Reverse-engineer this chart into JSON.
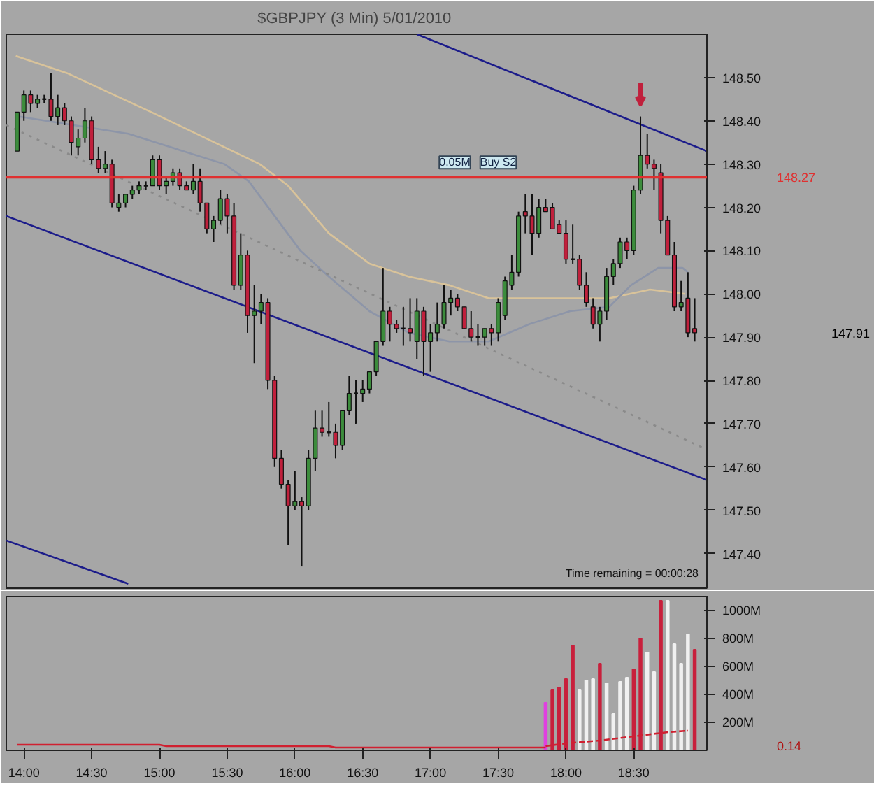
{
  "chart_data": [
    {
      "type": "candlestick",
      "title": "$GBPJPY (3 Min)  5/01/2010",
      "x": [
        13.95,
        14.0,
        14.05,
        14.1,
        14.15,
        14.2,
        14.25,
        14.3,
        14.35,
        14.4,
        14.45,
        14.5,
        14.55,
        14.6,
        14.65,
        14.7,
        14.75,
        14.8,
        14.85,
        14.9,
        14.95,
        15.0,
        15.05,
        15.1,
        15.15,
        15.2,
        15.25,
        15.3,
        15.35,
        15.4,
        15.45,
        15.5,
        15.55,
        15.6,
        15.65,
        15.7,
        15.75,
        15.8,
        15.85,
        15.9,
        15.95,
        16.0,
        16.05,
        16.1,
        16.15,
        16.2,
        16.25,
        16.3,
        16.35,
        16.4,
        16.45,
        16.5,
        16.55,
        16.6,
        16.65,
        16.7,
        16.75,
        16.8,
        16.85,
        16.9,
        16.95,
        17.0,
        17.05,
        17.1,
        17.15,
        17.2,
        17.25,
        17.3,
        17.35,
        17.4,
        17.45,
        17.5,
        17.55,
        17.6,
        17.65,
        17.7,
        17.75,
        17.8,
        17.85,
        17.9,
        17.95,
        18.0,
        18.05,
        18.1,
        18.15,
        18.2,
        18.25,
        18.3,
        18.35,
        18.4,
        18.45,
        18.5,
        18.55,
        18.6,
        18.65,
        18.7,
        18.75,
        18.8,
        18.85,
        18.9,
        18.95
      ],
      "ohlc": [
        [
          148.33,
          148.42,
          148.33,
          148.42
        ],
        [
          148.42,
          148.47,
          148.4,
          148.46
        ],
        [
          148.46,
          148.47,
          148.42,
          148.44
        ],
        [
          148.44,
          148.46,
          148.43,
          148.45
        ],
        [
          148.45,
          148.46,
          148.44,
          148.45
        ],
        [
          148.45,
          148.51,
          148.4,
          148.41
        ],
        [
          148.41,
          148.46,
          148.39,
          148.43
        ],
        [
          148.43,
          148.44,
          148.39,
          148.4
        ],
        [
          148.4,
          148.41,
          148.32,
          148.35
        ],
        [
          148.34,
          148.38,
          148.32,
          148.36
        ],
        [
          148.36,
          148.43,
          148.35,
          148.4
        ],
        [
          148.4,
          148.41,
          148.3,
          148.31
        ],
        [
          148.31,
          148.34,
          148.28,
          148.29
        ],
        [
          148.29,
          148.33,
          148.28,
          148.3
        ],
        [
          148.3,
          148.31,
          148.2,
          148.21
        ],
        [
          148.2,
          148.23,
          148.19,
          148.21
        ],
        [
          148.21,
          148.23,
          148.2,
          148.23
        ],
        [
          148.23,
          148.25,
          148.22,
          148.24
        ],
        [
          148.24,
          148.26,
          148.23,
          148.25
        ],
        [
          148.25,
          148.26,
          148.24,
          148.25
        ],
        [
          148.25,
          148.32,
          148.25,
          148.31
        ],
        [
          148.31,
          148.32,
          148.24,
          148.25
        ],
        [
          148.25,
          148.27,
          148.23,
          148.26
        ],
        [
          148.26,
          148.29,
          148.25,
          148.28
        ],
        [
          148.28,
          148.29,
          148.24,
          148.25
        ],
        [
          148.25,
          148.26,
          148.24,
          148.24
        ],
        [
          148.24,
          148.3,
          148.23,
          148.26
        ],
        [
          148.26,
          148.29,
          148.19,
          148.21
        ],
        [
          148.21,
          148.21,
          148.14,
          148.15
        ],
        [
          148.15,
          148.18,
          148.12,
          148.17
        ],
        [
          148.17,
          148.24,
          148.16,
          148.22
        ],
        [
          148.22,
          148.23,
          148.14,
          148.18
        ],
        [
          148.18,
          148.21,
          148.01,
          148.02
        ],
        [
          148.02,
          148.14,
          148.01,
          148.09
        ],
        [
          148.09,
          148.1,
          147.91,
          147.95
        ],
        [
          147.95,
          148.02,
          147.84,
          147.96
        ],
        [
          147.96,
          148.0,
          147.93,
          147.98
        ],
        [
          147.98,
          147.99,
          147.78,
          147.8
        ],
        [
          147.8,
          147.81,
          147.6,
          147.62
        ],
        [
          147.62,
          147.64,
          147.55,
          147.56
        ],
        [
          147.56,
          147.57,
          147.42,
          147.51
        ],
        [
          147.51,
          147.59,
          147.5,
          147.52
        ],
        [
          147.52,
          147.53,
          147.37,
          147.51
        ],
        [
          147.51,
          147.64,
          147.5,
          147.62
        ],
        [
          147.62,
          147.73,
          147.59,
          147.69
        ],
        [
          147.69,
          147.73,
          147.67,
          147.68
        ],
        [
          147.68,
          147.75,
          147.67,
          147.68
        ],
        [
          147.68,
          147.7,
          147.62,
          147.65
        ],
        [
          147.65,
          147.73,
          147.64,
          147.73
        ],
        [
          147.73,
          147.81,
          147.72,
          147.77
        ],
        [
          147.77,
          147.8,
          147.7,
          147.77
        ],
        [
          147.77,
          147.8,
          147.75,
          147.78
        ],
        [
          147.78,
          147.82,
          147.77,
          147.82
        ],
        [
          147.82,
          147.89,
          147.81,
          147.89
        ],
        [
          147.89,
          148.06,
          147.88,
          147.96
        ],
        [
          147.96,
          147.97,
          147.89,
          147.93
        ],
        [
          147.93,
          147.94,
          147.91,
          147.92
        ],
        [
          147.92,
          147.97,
          147.88,
          147.92
        ],
        [
          147.92,
          147.99,
          147.89,
          147.91
        ],
        [
          147.89,
          147.99,
          147.85,
          147.96
        ],
        [
          147.96,
          147.97,
          147.81,
          147.89
        ],
        [
          147.89,
          147.93,
          147.82,
          147.91
        ],
        [
          147.91,
          147.98,
          147.89,
          147.93
        ],
        [
          147.93,
          148.02,
          147.92,
          147.98
        ],
        [
          147.98,
          148.01,
          147.95,
          147.99
        ],
        [
          147.99,
          148.0,
          147.96,
          147.97
        ],
        [
          147.97,
          147.97,
          147.92,
          147.92
        ],
        [
          147.92,
          147.96,
          147.89,
          147.9
        ],
        [
          147.9,
          147.93,
          147.88,
          147.9
        ],
        [
          147.9,
          147.92,
          147.88,
          147.92
        ],
        [
          147.92,
          147.93,
          147.88,
          147.91
        ],
        [
          147.91,
          147.99,
          147.89,
          147.98
        ],
        [
          147.95,
          148.04,
          147.94,
          148.03
        ],
        [
          148.02,
          148.09,
          148.01,
          148.05
        ],
        [
          148.05,
          148.19,
          148.04,
          148.18
        ],
        [
          148.19,
          148.23,
          148.14,
          148.18
        ],
        [
          148.18,
          148.23,
          148.09,
          148.14
        ],
        [
          148.14,
          148.22,
          148.13,
          148.2
        ],
        [
          148.2,
          148.22,
          148.19,
          148.19
        ],
        [
          148.2,
          148.21,
          148.15,
          148.15
        ],
        [
          148.16,
          148.17,
          148.14,
          148.14
        ],
        [
          148.14,
          148.17,
          148.07,
          148.08
        ],
        [
          148.08,
          148.16,
          148.07,
          148.08
        ],
        [
          148.08,
          148.09,
          148.01,
          148.02
        ],
        [
          148.02,
          148.05,
          147.97,
          147.98
        ],
        [
          147.97,
          147.99,
          147.92,
          147.93
        ],
        [
          147.93,
          147.97,
          147.89,
          147.96
        ],
        [
          147.96,
          148.06,
          147.94,
          148.04
        ],
        [
          148.04,
          148.08,
          148.02,
          148.07
        ],
        [
          148.07,
          148.13,
          148.06,
          148.12
        ],
        [
          148.12,
          148.13,
          148.08,
          148.1
        ],
        [
          148.1,
          148.25,
          148.09,
          148.24
        ],
        [
          148.24,
          148.41,
          148.23,
          148.32
        ],
        [
          148.32,
          148.37,
          148.29,
          148.3
        ],
        [
          148.3,
          148.31,
          148.24,
          148.29
        ],
        [
          148.28,
          148.3,
          148.14,
          148.17
        ],
        [
          148.17,
          148.18,
          148.09,
          148.09
        ],
        [
          148.09,
          148.12,
          147.96,
          147.97
        ],
        [
          147.97,
          148.03,
          147.96,
          147.98
        ],
        [
          147.99,
          148.05,
          147.9,
          147.91
        ],
        [
          147.92,
          147.99,
          147.89,
          147.91
        ]
      ],
      "series": [
        {
          "type": "line",
          "color": "#d9c39a",
          "x": [
            13.94,
            14.32,
            14.94,
            15.74,
            15.95,
            16.25,
            16.55,
            16.84,
            17.14,
            17.43,
            18.03,
            18.32,
            18.62,
            18.88
          ],
          "values": [
            148.55,
            148.51,
            148.42,
            148.3,
            148.25,
            148.14,
            148.07,
            148.04,
            148.02,
            147.99,
            147.99,
            147.99,
            148.01,
            148.0
          ]
        },
        {
          "type": "line",
          "color": "#8d95a8",
          "x": [
            13.96,
            14.77,
            15.48,
            15.66,
            16.04,
            16.25,
            16.55,
            16.84,
            17.14,
            17.43,
            17.73,
            18.03,
            18.32,
            18.48,
            18.68,
            18.86,
            18.9
          ],
          "values": [
            148.41,
            148.37,
            148.3,
            148.26,
            148.1,
            148.04,
            147.96,
            147.91,
            147.89,
            147.89,
            147.93,
            147.96,
            147.97,
            148.02,
            148.06,
            148.06,
            148.05
          ]
        },
        {
          "type": "line",
          "color": "#8a8a8a",
          "line_style": "dotted",
          "x": [
            13.87,
            19.04
          ],
          "values": [
            148.39,
            147.64
          ]
        },
        {
          "type": "line",
          "color": "#1c1c8a",
          "x": [
            16.9,
            19.04
          ],
          "values": [
            148.6,
            148.33
          ]
        },
        {
          "type": "line",
          "color": "#1c1c8a",
          "x": [
            13.87,
            19.04
          ],
          "values": [
            148.18,
            147.57
          ]
        },
        {
          "type": "line",
          "color": "#1c1c8a",
          "x": [
            13.87,
            14.77
          ],
          "values": [
            147.43,
            147.33
          ]
        }
      ],
      "ref_lines": [
        {
          "axis": "y",
          "value": 148.27,
          "label": "148.27",
          "color": "#e03030"
        }
      ],
      "annotations": [
        "Time remaining = 00:00:28",
        "147.91",
        {
          "text": "0.05M",
          "x": 17.18,
          "y": 148.27
        },
        {
          "text": "Buy S2",
          "x": 17.5,
          "y": 148.27
        }
      ],
      "xlim": [
        13.87,
        19.04
      ],
      "ylim": [
        147.32,
        148.6
      ],
      "yticks": [
        {
          "value": 147.4,
          "label": "147.40"
        },
        {
          "value": 147.5,
          "label": "147.50"
        },
        {
          "value": 147.6,
          "label": "147.60"
        },
        {
          "value": 147.7,
          "label": "147.70"
        },
        {
          "value": 147.8,
          "label": "147.80"
        },
        {
          "value": 147.9,
          "label": "147.90"
        },
        {
          "value": 148.0,
          "label": "148.00"
        },
        {
          "value": 148.1,
          "label": "148.10"
        },
        {
          "value": 148.2,
          "label": "148.20"
        },
        {
          "value": 148.3,
          "label": "148.30"
        },
        {
          "value": 148.4,
          "label": "148.40"
        },
        {
          "value": 148.5,
          "label": "148.50"
        }
      ],
      "tick_labels": "y",
      "grid": false
    },
    {
      "type": "bar",
      "x": [
        17.85,
        17.9,
        17.95,
        18.0,
        18.05,
        18.1,
        18.15,
        18.2,
        18.25,
        18.3,
        18.35,
        18.4,
        18.45,
        18.5,
        18.55,
        18.6,
        18.65,
        18.7,
        18.75,
        18.8,
        18.85,
        18.9,
        18.95
      ],
      "series": [
        {
          "type": "bar",
          "colors": [
            "#e040e0",
            "#c8203c",
            "#c8203c",
            "#c8203c",
            "#c8203c",
            "#f0f0f0",
            "#f0f0f0",
            "#f0f0f0",
            "#c8203c",
            "#f0f0f0",
            "#f0f0f0",
            "#f0f0f0",
            "#f0f0f0",
            "#c8203c",
            "#c8203c",
            "#f0f0f0",
            "#f0f0f0",
            "#c8203c",
            "#f0f0f0",
            "#f0f0f0",
            "#f0f0f0",
            "#f0f0f0",
            "#c8203c"
          ],
          "values": [
            340,
            430,
            450,
            510,
            750,
            430,
            500,
            510,
            620,
            480,
            260,
            490,
            520,
            580,
            800,
            700,
            560,
            1070,
            1070,
            760,
            620,
            830,
            720
          ]
        },
        {
          "type": "line",
          "color": "#d02030",
          "x": [
            13.95,
            15.0,
            15.05,
            16.25,
            16.3,
            17.85
          ],
          "values": [
            40,
            40,
            30,
            30,
            20,
            20
          ]
        },
        {
          "type": "line",
          "color": "#d02030",
          "line_style": "dashed",
          "x": [
            17.85,
            18.0,
            18.25,
            18.5,
            18.75,
            18.9
          ],
          "values": [
            30,
            50,
            70,
            100,
            130,
            140
          ]
        }
      ],
      "annotations": [
        "0.14"
      ],
      "xlim": [
        13.87,
        19.04
      ],
      "xticks": [
        {
          "value": 14,
          "label": "14:00"
        },
        {
          "value": 14.5,
          "label": "14:30"
        },
        {
          "value": 15,
          "label": "15:00"
        },
        {
          "value": 15.5,
          "label": "15:30"
        },
        {
          "value": 16,
          "label": "16:00"
        },
        {
          "value": 16.5,
          "label": "16:30"
        },
        {
          "value": 17,
          "label": "17:00"
        },
        {
          "value": 17.5,
          "label": "17:30"
        },
        {
          "value": 18,
          "label": "18:00"
        },
        {
          "value": 18.5,
          "label": "18:30"
        }
      ],
      "ylim": [
        0,
        1100
      ],
      "yticks": [
        {
          "value": 200,
          "label": "200M"
        },
        {
          "value": 400,
          "label": "400M"
        },
        {
          "value": 600,
          "label": "600M"
        },
        {
          "value": 800,
          "label": "800M"
        },
        {
          "value": 1000,
          "label": "1000M"
        }
      ],
      "grid": false
    }
  ]
}
